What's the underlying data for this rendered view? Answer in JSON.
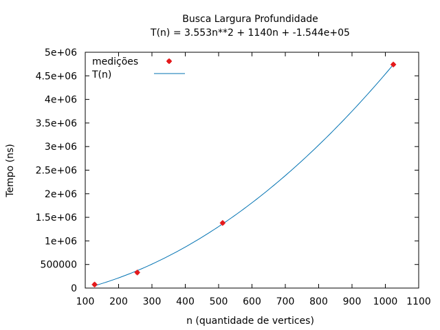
{
  "chart_data": {
    "type": "scatter",
    "title": "Busca Largura Profundidade",
    "subtitle": "T(n) = 3.553n**2 + 1140n + -1.544e+05",
    "xlabel": "n (quantidade de vertices)",
    "ylabel": "Tempo (ns)",
    "xlim": [
      100,
      1100
    ],
    "ylim": [
      0,
      5000000
    ],
    "x_ticks": [
      100,
      200,
      300,
      400,
      500,
      600,
      700,
      800,
      900,
      1000,
      1100
    ],
    "x_tick_labels": [
      "100",
      "200",
      "300",
      "400",
      "500",
      "600",
      "700",
      "800",
      "900",
      "1000",
      "1100"
    ],
    "y_ticks": [
      0,
      500000,
      1000000,
      1500000,
      2000000,
      2500000,
      3000000,
      3500000,
      4000000,
      4500000,
      5000000
    ],
    "y_tick_labels": [
      "0",
      "500000",
      "1e+06",
      "1.5e+06",
      "2e+06",
      "2.5e+06",
      "3e+06",
      "3.5e+06",
      "4e+06",
      "4.5e+06",
      "5e+06"
    ],
    "grid": false,
    "legend_position": "top-left",
    "series": [
      {
        "name": "medições",
        "kind": "points",
        "color": "#e41a1c",
        "x": [
          128,
          256,
          512,
          1024
        ],
        "y": [
          75000,
          330000,
          1380000,
          4740000
        ]
      },
      {
        "name": "T(n)",
        "kind": "line",
        "color": "#0072b2",
        "formula": {
          "a": 3.553,
          "b": 1140,
          "c": -154400
        },
        "x_range": [
          128,
          1024
        ]
      }
    ]
  }
}
